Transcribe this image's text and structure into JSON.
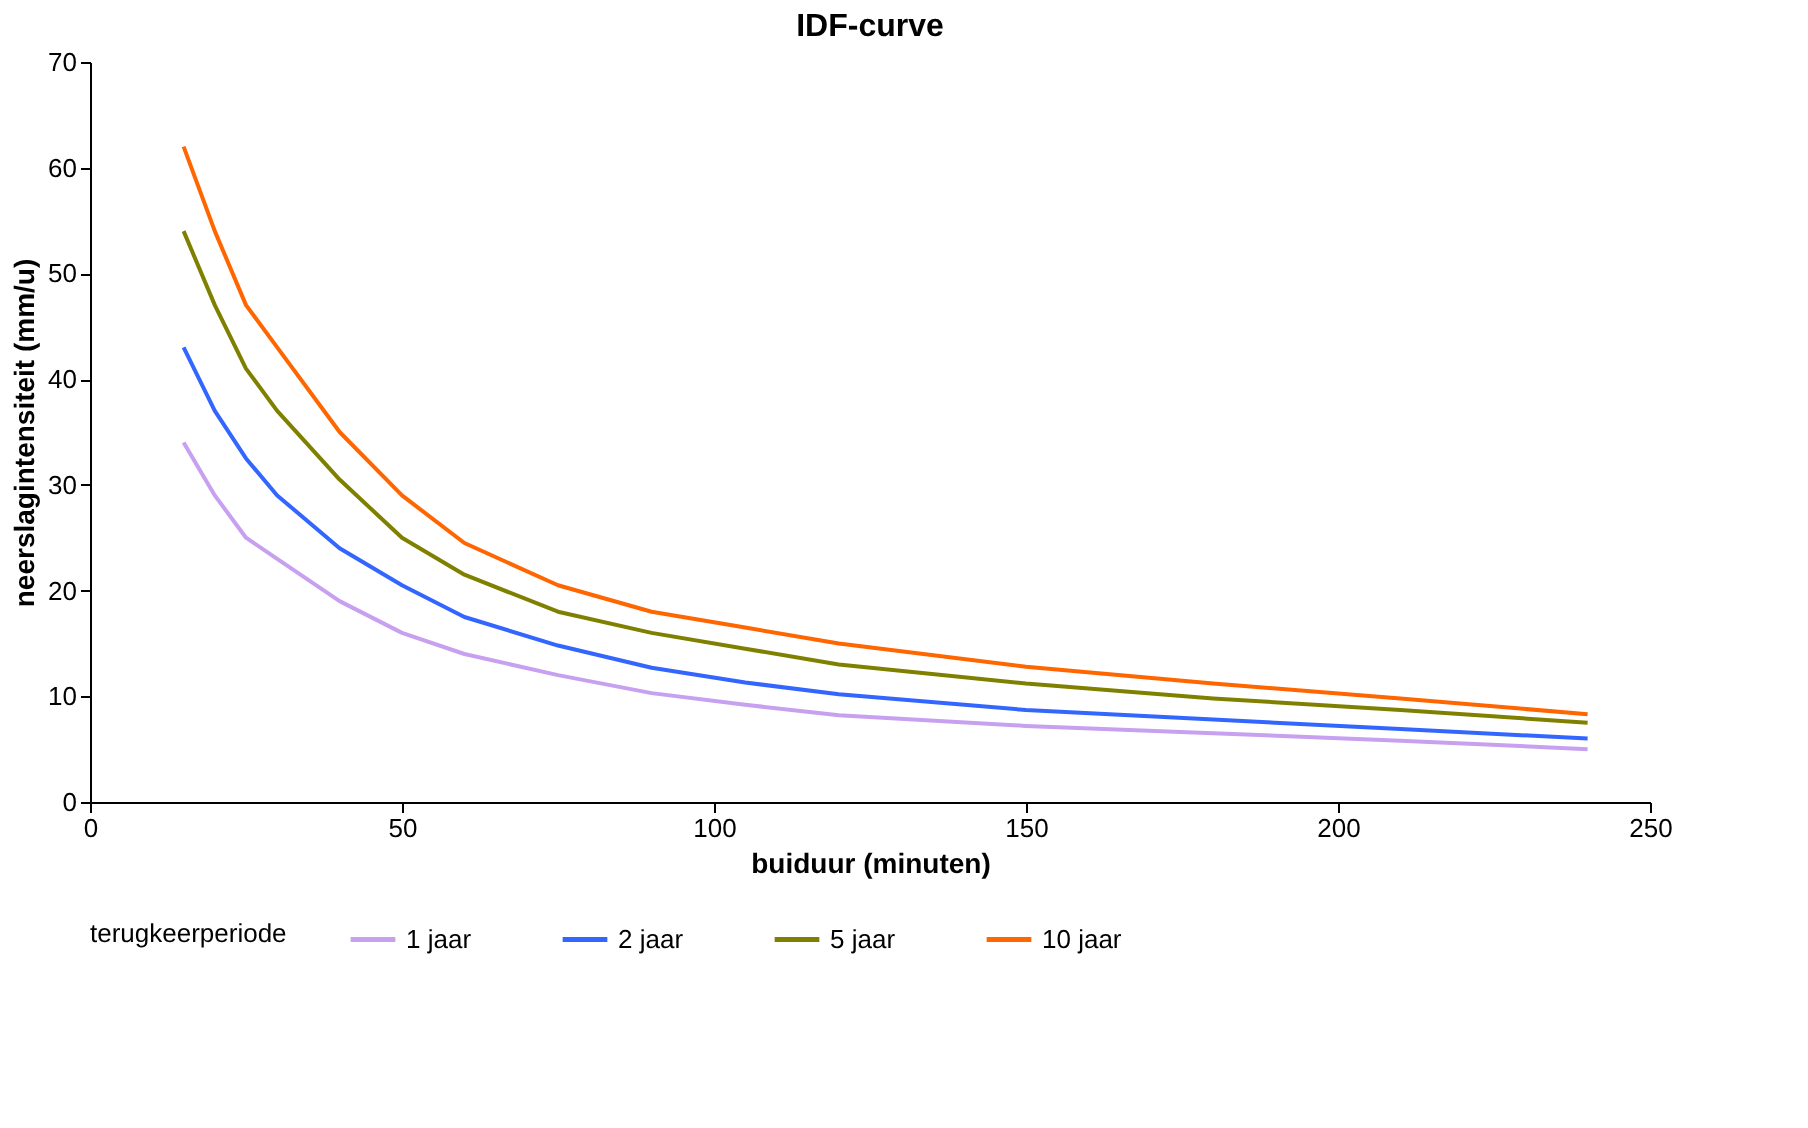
{
  "chart_data": {
    "type": "line",
    "title": "IDF-curve",
    "xlabel": "buiduur (minuten)",
    "ylabel": "neerslagintensiteit (mm/u)",
    "legend_title": "terugkeerperiode",
    "legend": "bottom",
    "grid": false,
    "marker": "none",
    "line_style": "solid",
    "x": [
      15,
      20,
      25,
      30,
      40,
      50,
      60,
      75,
      90,
      105,
      120,
      150,
      180,
      210,
      240
    ],
    "xlim": [
      0,
      250
    ],
    "xticks": [
      0,
      50,
      100,
      150,
      200,
      250
    ],
    "ylim": [
      0,
      70
    ],
    "yticks": [
      0,
      10,
      20,
      30,
      40,
      50,
      60,
      70
    ],
    "series": [
      {
        "name": "1 jaar",
        "color": "#c8a0f0",
        "values": [
          34,
          29,
          25,
          23,
          19,
          16,
          14,
          12,
          10.3,
          9.2,
          8.2,
          7.2,
          6.5,
          5.8,
          5
        ]
      },
      {
        "name": "2 jaar",
        "color": "#3366ff",
        "values": [
          43,
          37,
          32.5,
          29,
          24,
          20.5,
          17.5,
          14.8,
          12.7,
          11.3,
          10.2,
          8.7,
          7.8,
          6.9,
          6
        ]
      },
      {
        "name": "5 jaar",
        "color": "#808000",
        "values": [
          54,
          47,
          41,
          37,
          30.5,
          25,
          21.5,
          18,
          16,
          14.5,
          13,
          11.2,
          9.8,
          8.7,
          7.5
        ]
      },
      {
        "name": "10 jaar",
        "color": "#ff6600",
        "values": [
          62,
          54,
          47,
          43,
          35,
          29,
          24.5,
          20.5,
          18,
          16.5,
          15,
          12.8,
          11.2,
          9.8,
          8.3
        ]
      }
    ]
  }
}
